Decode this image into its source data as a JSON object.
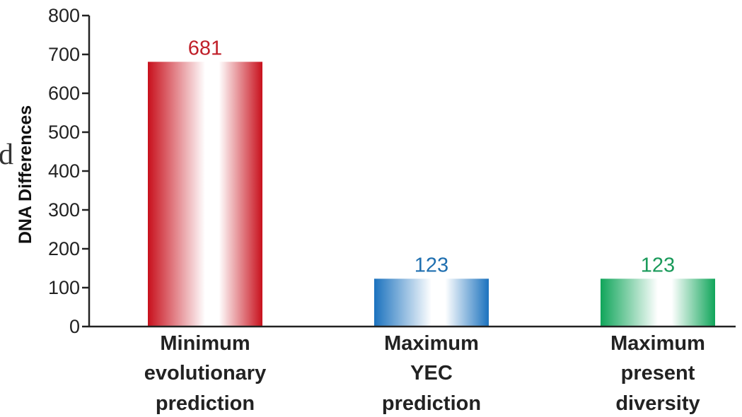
{
  "stray_text": "d",
  "chart_data": {
    "type": "bar",
    "title": "",
    "xlabel": "",
    "ylabel": "DNA Differences",
    "ylim": [
      0,
      800
    ],
    "yticks": [
      0,
      100,
      200,
      300,
      400,
      500,
      600,
      700,
      800
    ],
    "grid": false,
    "legend": "none",
    "categories": [
      [
        "Minimum",
        "evolutionary",
        "prediction"
      ],
      [
        "Maximum",
        "YEC",
        "prediction"
      ],
      [
        "Maximum",
        "present",
        "diversity"
      ]
    ],
    "values": [
      681,
      123,
      123
    ],
    "data_labels": [
      "681",
      "123",
      "123"
    ],
    "colors": [
      "#c8101c",
      "#1b72be",
      "#10a55a"
    ],
    "label_colors": [
      "#c0202a",
      "#1f6fb0",
      "#1a9a5a"
    ]
  }
}
